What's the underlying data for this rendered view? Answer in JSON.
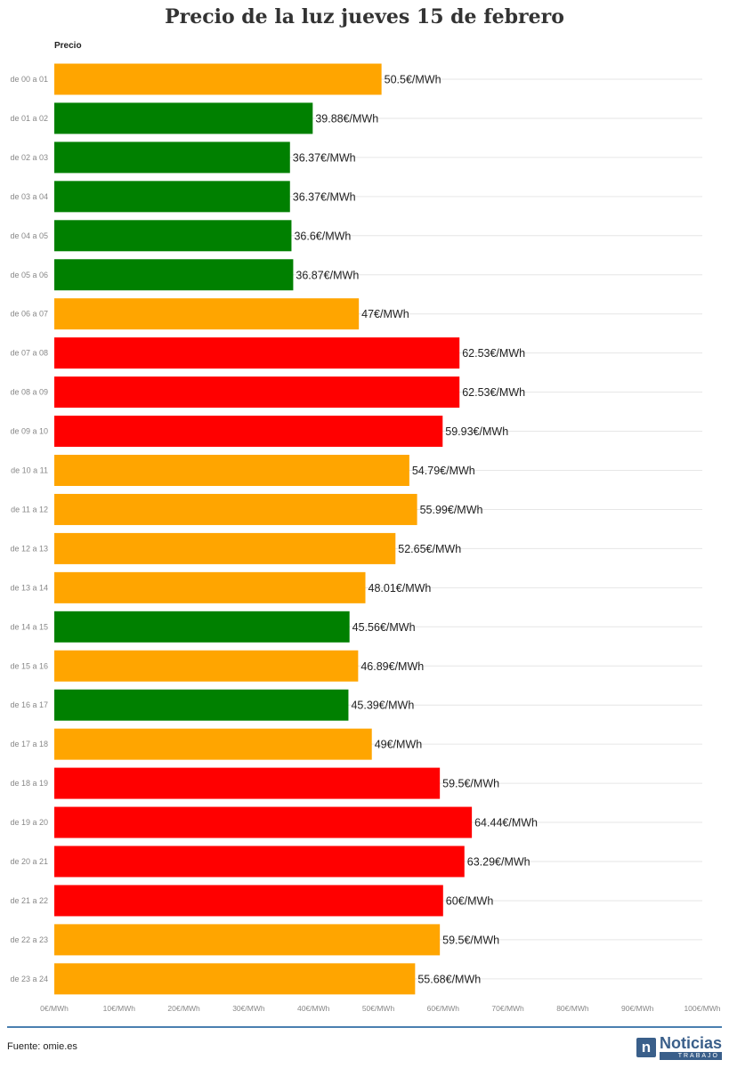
{
  "chart_data": {
    "type": "bar",
    "orientation": "horizontal",
    "title": "Precio de la luz jueves 15 de febrero",
    "series_label": "Precio",
    "unit": "€/MWh",
    "categories": [
      "de 00 a 01",
      "de 01 a 02",
      "de 02 a 03",
      "de 03 a 04",
      "de 04 a 05",
      "de 05 a 06",
      "de 06 a 07",
      "de 07 a 08",
      "de 08 a 09",
      "de 09 a 10",
      "de 10 a 11",
      "de 11 a 12",
      "de 12 a 13",
      "de 13 a 14",
      "de 14 a 15",
      "de 15 a 16",
      "de 16 a 17",
      "de 17 a 18",
      "de 18 a 19",
      "de 19 a 20",
      "de 20 a 21",
      "de 21 a 22",
      "de 22 a 23",
      "de 23 a 24"
    ],
    "values": [
      50.5,
      39.88,
      36.37,
      36.37,
      36.6,
      36.87,
      47,
      62.53,
      62.53,
      59.93,
      54.79,
      55.99,
      52.65,
      48.01,
      45.56,
      46.89,
      45.39,
      49,
      59.5,
      64.44,
      63.29,
      60,
      59.5,
      55.68
    ],
    "value_labels": [
      "50.5€/MWh",
      "39.88€/MWh",
      "36.37€/MWh",
      "36.37€/MWh",
      "36.6€/MWh",
      "36.87€/MWh",
      "47€/MWh",
      "62.53€/MWh",
      "62.53€/MWh",
      "59.93€/MWh",
      "54.79€/MWh",
      "55.99€/MWh",
      "52.65€/MWh",
      "48.01€/MWh",
      "45.56€/MWh",
      "46.89€/MWh",
      "45.39€/MWh",
      "49€/MWh",
      "59.5€/MWh",
      "64.44€/MWh",
      "63.29€/MWh",
      "60€/MWh",
      "59.5€/MWh",
      "55.68€/MWh"
    ],
    "bar_levels": [
      "medium",
      "low",
      "low",
      "low",
      "low",
      "low",
      "medium",
      "high",
      "high",
      "high",
      "medium",
      "medium",
      "medium",
      "medium",
      "low",
      "medium",
      "low",
      "medium",
      "high",
      "high",
      "high",
      "high",
      "medium",
      "medium"
    ],
    "level_colors": {
      "low": "#008000",
      "medium": "#ffa500",
      "high": "#ff0000"
    },
    "xlim": [
      0,
      100
    ],
    "xticks": [
      0,
      10,
      20,
      30,
      40,
      50,
      60,
      70,
      80,
      90,
      100
    ],
    "xtick_labels": [
      "0€/MWh",
      "10€/MWh",
      "20€/MWh",
      "30€/MWh",
      "40€/MWh",
      "50€/MWh",
      "60€/MWh",
      "70€/MWh",
      "80€/MWh",
      "90€/MWh",
      "100€/MWh"
    ],
    "grid": true
  },
  "footer": {
    "source": "Fuente: omie.es",
    "logo_mark": "n",
    "logo_main": "Noticias",
    "logo_sub": "TRABAJO"
  }
}
